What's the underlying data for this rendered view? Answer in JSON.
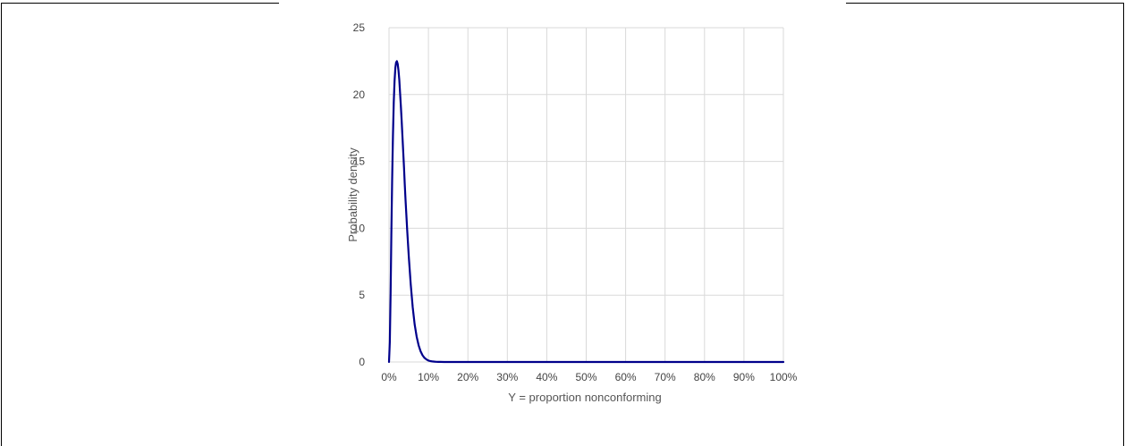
{
  "chart_data": {
    "type": "line",
    "title": "",
    "xlabel": "Y = proportion nonconforming",
    "ylabel": "Probability density",
    "xlim": [
      0,
      1
    ],
    "ylim": [
      0,
      25
    ],
    "grid": true,
    "legend": "none",
    "x_ticks": [
      0,
      0.1,
      0.2,
      0.3,
      0.4,
      0.5,
      0.6,
      0.7,
      0.8,
      0.9,
      1.0
    ],
    "x_tick_labels": [
      "0%",
      "10%",
      "20%",
      "30%",
      "40%",
      "50%",
      "60%",
      "70%",
      "80%",
      "90%",
      "100%"
    ],
    "y_ticks": [
      0,
      5,
      10,
      15,
      20,
      25
    ],
    "y_tick_labels": [
      "0",
      "5",
      "10",
      "15",
      "20",
      "25"
    ],
    "colors": {
      "line": "#00008B",
      "grid": "#d9d9d9",
      "tick_text": "#444444",
      "axis_title": "#555555"
    },
    "series": [
      {
        "x": [
          0,
          0.002,
          0.004,
          0.006,
          0.008,
          0.01,
          0.012,
          0.014,
          0.016,
          0.018,
          0.02,
          0.022,
          0.024,
          0.026,
          0.028,
          0.03,
          0.032,
          0.034,
          0.036,
          0.038,
          0.04,
          0.042,
          0.044,
          0.046,
          0.048,
          0.05,
          0.055,
          0.06,
          0.065,
          0.07,
          0.075,
          0.08,
          0.085,
          0.09,
          0.095,
          0.1,
          0.105,
          0.11,
          0.115,
          0.12,
          0.125,
          0.13,
          0.14,
          0.15,
          0.2,
          0.3,
          0.4,
          0.5,
          0.6,
          0.7,
          0.8,
          0.9,
          1.0
        ],
        "values": [
          0,
          1.5,
          5.2,
          9.5,
          13.6,
          16.9,
          19.4,
          21.0,
          22.0,
          22.4,
          22.5,
          22.3,
          21.8,
          21.1,
          20.2,
          19.2,
          18.1,
          16.9,
          15.7,
          14.5,
          13.3,
          12.1,
          11.0,
          9.9,
          8.9,
          7.9,
          5.8,
          4.1,
          2.8,
          1.9,
          1.25,
          0.8,
          0.5,
          0.31,
          0.19,
          0.11,
          0.07,
          0.04,
          0.025,
          0.015,
          0.009,
          0.005,
          0.002,
          0.001,
          0,
          0,
          0,
          0,
          0,
          0,
          0,
          0,
          0
        ]
      }
    ]
  }
}
